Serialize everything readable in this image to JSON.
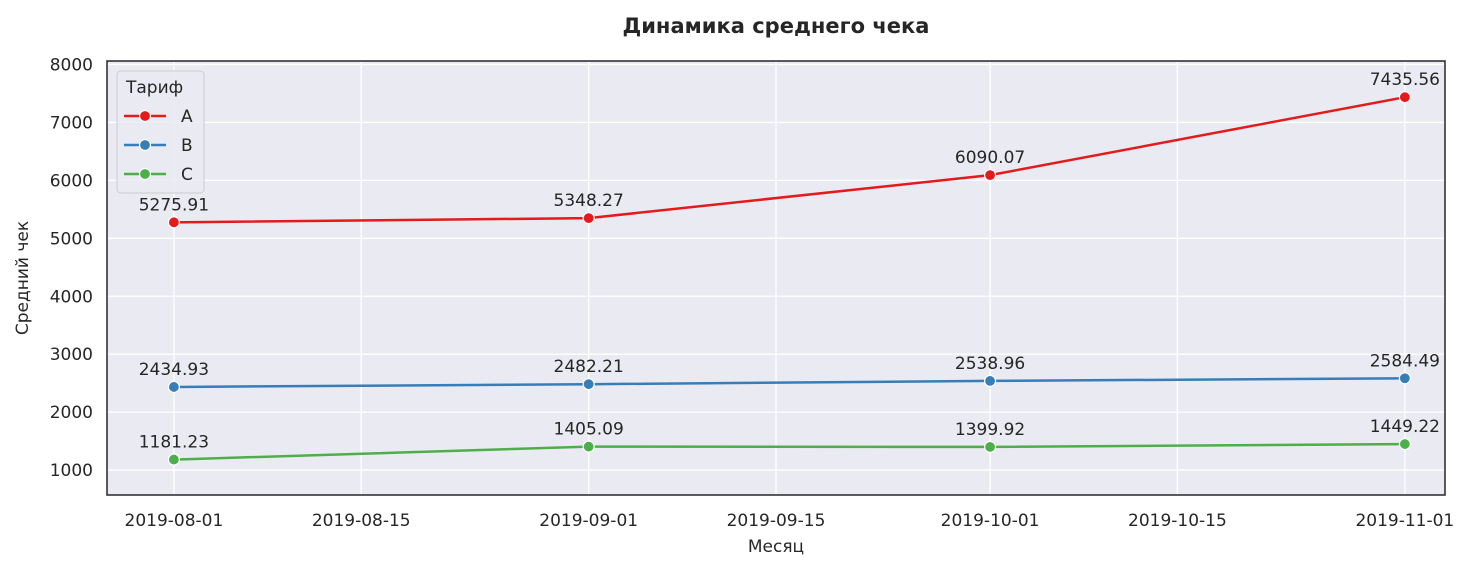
{
  "chart_data": {
    "type": "line",
    "title": "Динамика среднего чека",
    "xlabel": "Месяц",
    "ylabel": "Средний чек",
    "x": [
      "2019-08-01",
      "2019-09-01",
      "2019-10-01",
      "2019-11-01"
    ],
    "x_ticks": [
      "2019-08-01",
      "2019-08-15",
      "2019-09-01",
      "2019-09-15",
      "2019-10-01",
      "2019-10-15",
      "2019-11-01"
    ],
    "y_ticks": [
      1000,
      2000,
      3000,
      4000,
      5000,
      6000,
      7000,
      8000
    ],
    "ylim": [
      570,
      8060
    ],
    "xlim": [
      "2019-07-27",
      "2019-11-04"
    ],
    "grid": true,
    "legend": {
      "title": "Тариф",
      "position": "top-left"
    },
    "series": [
      {
        "name": "A",
        "color": "#e41a1c",
        "values": [
          5275.91,
          5348.27,
          6090.07,
          7435.56
        ],
        "labels": [
          "5275.91",
          "5348.27",
          "6090.07",
          "7435.56"
        ]
      },
      {
        "name": "B",
        "color": "#377eb8",
        "values": [
          2434.93,
          2482.21,
          2538.96,
          2584.49
        ],
        "labels": [
          "2434.93",
          "2482.21",
          "2538.96",
          "2584.49"
        ]
      },
      {
        "name": "C",
        "color": "#4daf4a",
        "values": [
          1181.23,
          1405.09,
          1399.92,
          1449.22
        ],
        "labels": [
          "1181.23",
          "1405.09",
          "1399.92",
          "1449.22"
        ]
      }
    ]
  }
}
